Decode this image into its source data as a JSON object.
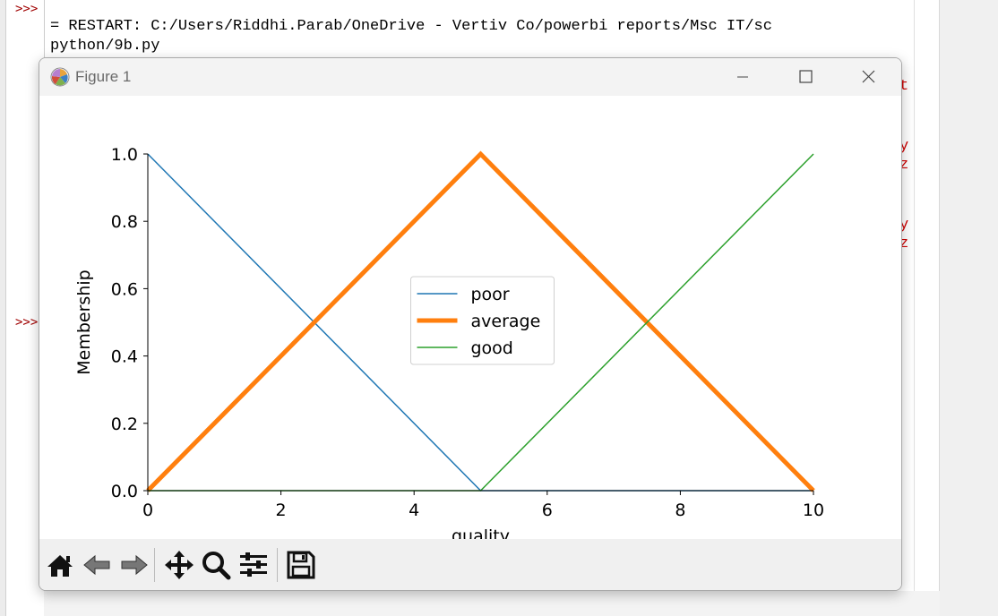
{
  "shell": {
    "prompts": [
      ">>>",
      ">>>"
    ],
    "restart_line_1": "= RESTART: C:/Users/Riddhi.Parab/OneDrive - Vertiv Co/powerbi reports/Msc IT/sc",
    "restart_line_2": "python/9b.py",
    "right_fragments": [
      "t",
      "y",
      "z",
      "y",
      "z"
    ]
  },
  "window": {
    "title": "Figure 1",
    "minimize_icon": "minimize-icon",
    "maximize_icon": "maximize-icon",
    "close_icon": "close-icon"
  },
  "toolbar": {
    "buttons": [
      {
        "icon": "home-icon",
        "name": "Home"
      },
      {
        "icon": "back-arrow-icon",
        "name": "Back"
      },
      {
        "icon": "forward-arrow-icon",
        "name": "Forward"
      },
      {
        "icon": "pan-icon",
        "name": "Pan"
      },
      {
        "icon": "zoom-icon",
        "name": "Zoom"
      },
      {
        "icon": "configure-subplots-icon",
        "name": "Subplots"
      },
      {
        "icon": "save-icon",
        "name": "Save"
      }
    ]
  },
  "chart_data": {
    "type": "line",
    "title": "",
    "xlabel": "quality",
    "ylabel": "Membership",
    "xlim": [
      0,
      10
    ],
    "ylim": [
      0,
      1
    ],
    "xticks": [
      0,
      2,
      4,
      6,
      8,
      10
    ],
    "yticks": [
      0.0,
      0.2,
      0.4,
      0.6,
      0.8,
      1.0
    ],
    "ytick_labels": [
      "0.0",
      "0.2",
      "0.4",
      "0.6",
      "0.8",
      "1.0"
    ],
    "legend_position": "center",
    "grid": false,
    "series": [
      {
        "name": "poor",
        "x": [
          0,
          5,
          10
        ],
        "y": [
          1,
          0,
          0
        ],
        "color": "#1f77b4",
        "linewidth": 1.5
      },
      {
        "name": "average",
        "x": [
          0,
          5,
          10
        ],
        "y": [
          0,
          1,
          0
        ],
        "color": "#ff7f0e",
        "linewidth": 5
      },
      {
        "name": "good",
        "x": [
          0,
          5,
          10
        ],
        "y": [
          0,
          0,
          1
        ],
        "color": "#2ca02c",
        "linewidth": 1.5
      }
    ]
  }
}
